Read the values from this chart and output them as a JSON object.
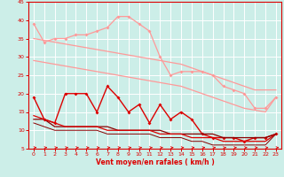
{
  "x": [
    0,
    1,
    2,
    3,
    4,
    5,
    6,
    7,
    8,
    9,
    10,
    11,
    12,
    13,
    14,
    15,
    16,
    17,
    18,
    19,
    20,
    21,
    22,
    23
  ],
  "line_pink_top": [
    39,
    34,
    35,
    35,
    36,
    36,
    37,
    38,
    41,
    41,
    39,
    37,
    30,
    25,
    26,
    26,
    26,
    25,
    22,
    21,
    20,
    16,
    16,
    19
  ],
  "line_pink_trend1": [
    35,
    34.5,
    34,
    33.5,
    33,
    32.5,
    32,
    31.5,
    31,
    30.5,
    30,
    29.5,
    29,
    28.5,
    28,
    27,
    26,
    25,
    24,
    23,
    22,
    21,
    21,
    21
  ],
  "line_pink_trend2": [
    29,
    28.5,
    28,
    27.5,
    27,
    26.5,
    26,
    25.5,
    25,
    24.5,
    24,
    23.5,
    23,
    22.5,
    22,
    21,
    20,
    19,
    18,
    17,
    16,
    15.5,
    15,
    19
  ],
  "line_red_jagged": [
    19,
    13,
    12,
    20,
    20,
    20,
    15,
    22,
    19,
    15,
    17,
    12,
    17,
    13,
    15,
    13,
    9,
    8,
    8,
    8,
    7,
    8,
    8,
    9
  ],
  "line_dark1": [
    13,
    13,
    11,
    11,
    11,
    11,
    11,
    11,
    10,
    10,
    10,
    10,
    10,
    9,
    9,
    9,
    9,
    9,
    8,
    8,
    8,
    8,
    8,
    9
  ],
  "line_dark2": [
    14,
    13,
    12,
    11,
    11,
    11,
    11,
    10,
    10,
    10,
    10,
    10,
    9,
    9,
    9,
    8,
    8,
    8,
    7,
    7,
    7,
    7,
    7,
    9
  ],
  "line_dark3": [
    12,
    11,
    10,
    10,
    10,
    10,
    10,
    9,
    9,
    9,
    9,
    9,
    8,
    8,
    8,
    7,
    7,
    6,
    6,
    6,
    6,
    6,
    6,
    9
  ],
  "xlabel": "Vent moyen/en rafales ( km/h )",
  "ylim": [
    5,
    45
  ],
  "xlim": [
    -0.5,
    23.5
  ],
  "yticks": [
    5,
    10,
    15,
    20,
    25,
    30,
    35,
    40,
    45
  ],
  "xticks": [
    0,
    1,
    2,
    3,
    4,
    5,
    6,
    7,
    8,
    9,
    10,
    11,
    12,
    13,
    14,
    15,
    16,
    17,
    18,
    19,
    20,
    21,
    22,
    23
  ],
  "bg_color": "#cceee8",
  "grid_color": "#ffffff",
  "color_pink_light": "#ff9999",
  "color_red": "#dd0000",
  "color_dark_red": "#880000"
}
